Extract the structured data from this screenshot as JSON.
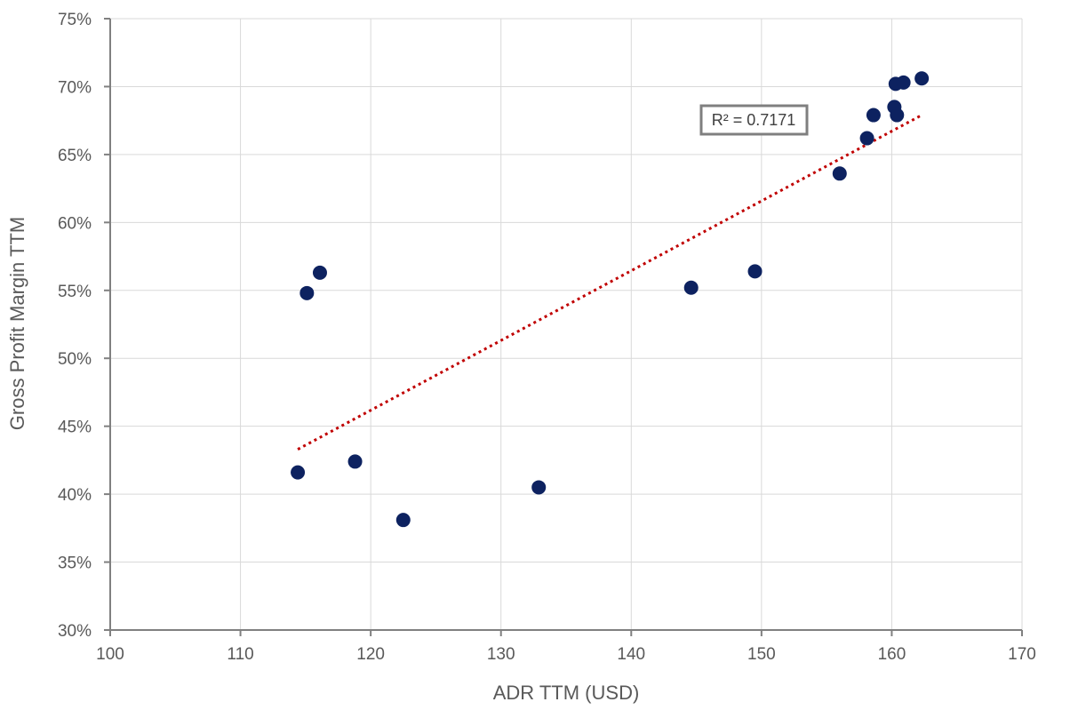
{
  "chart_data": {
    "type": "scatter",
    "xlabel": "ADR TTM (USD)",
    "ylabel": "Gross Profit Margin TTM",
    "xlim": [
      100,
      170
    ],
    "ylim": [
      30,
      75
    ],
    "x_ticks": [
      100,
      110,
      120,
      130,
      140,
      150,
      160,
      170
    ],
    "y_ticks": [
      30,
      35,
      40,
      45,
      50,
      55,
      60,
      65,
      70,
      75
    ],
    "y_tick_labels": [
      "30%",
      "35%",
      "40%",
      "45%",
      "50%",
      "55%",
      "60%",
      "65%",
      "70%",
      "75%"
    ],
    "grid": true,
    "legend": "none",
    "series": [
      {
        "color": "#0d2260",
        "points": [
          {
            "x": 114.4,
            "y": 41.6
          },
          {
            "x": 115.1,
            "y": 54.8
          },
          {
            "x": 116.1,
            "y": 56.3
          },
          {
            "x": 118.8,
            "y": 42.4
          },
          {
            "x": 122.5,
            "y": 38.1
          },
          {
            "x": 132.9,
            "y": 40.5
          },
          {
            "x": 144.6,
            "y": 55.2
          },
          {
            "x": 149.5,
            "y": 56.4
          },
          {
            "x": 156.0,
            "y": 63.6
          },
          {
            "x": 158.1,
            "y": 66.2
          },
          {
            "x": 158.6,
            "y": 67.9
          },
          {
            "x": 160.2,
            "y": 68.5
          },
          {
            "x": 160.4,
            "y": 67.9
          },
          {
            "x": 160.3,
            "y": 70.2
          },
          {
            "x": 160.9,
            "y": 70.3
          },
          {
            "x": 162.3,
            "y": 70.6
          }
        ]
      }
    ],
    "trendline": {
      "type": "linear",
      "style": "dotted",
      "color": "#c00000",
      "x_start": 114.4,
      "y_start": 43.3,
      "x_end": 162.3,
      "y_end": 67.9
    },
    "annotation": {
      "text": "R² = 0.7171"
    }
  }
}
